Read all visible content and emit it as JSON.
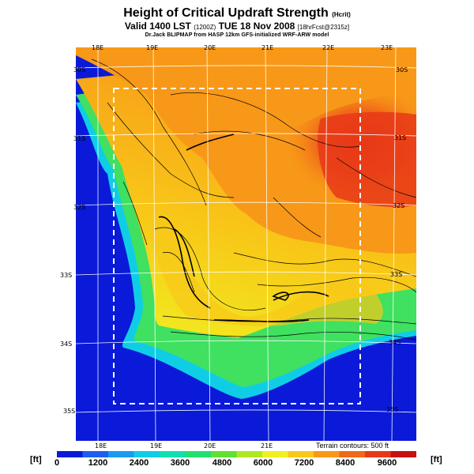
{
  "title": {
    "main": "Height of Critical Updraft Strength",
    "main_suffix": "(Hcrit)",
    "valid_main": "Valid 1400 LST",
    "valid_z": "(1200Z)",
    "valid_date": "TUE 18 Nov 2008",
    "valid_suffix": "[18hrFcst@2315z]",
    "credit": "Dr.Jack BLIPMAP from HASP 12km GFS-initialized WRF-ARW model"
  },
  "map": {
    "lon_labels_top": [
      "18E",
      "19E",
      "20E",
      "21E",
      "22E",
      "23E"
    ],
    "lon_labels_bottom": [
      "18E",
      "19E",
      "20E",
      "21E"
    ],
    "lat_labels_left": [
      "30S",
      "31S",
      "32S",
      "33S",
      "34S",
      "35S"
    ],
    "lat_labels_right": [
      "30S",
      "31S",
      "32S",
      "33S",
      "34S",
      "35S"
    ],
    "terrain_note": "Terrain contours: 500 ft"
  },
  "colorbar": {
    "unit_left": "[ft]",
    "unit_right": "[ft]",
    "tick_labels": [
      "0",
      "1200",
      "2400",
      "3600",
      "4800",
      "6000",
      "7200",
      "8400",
      "9600"
    ],
    "colors": [
      "#0a1ad8",
      "#1e5ef0",
      "#1a9af0",
      "#10cde6",
      "#10e0b0",
      "#20e070",
      "#60e030",
      "#b0e820",
      "#f0f020",
      "#f8c818",
      "#f89818",
      "#f06818",
      "#e83818",
      "#c81010"
    ]
  }
}
